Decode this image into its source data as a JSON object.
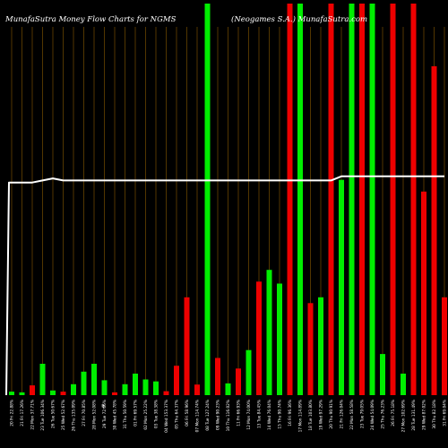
{
  "chart_data": {
    "type": "bar",
    "title_left": "MunafaSutra  Money Flow  Charts for NGMS",
    "title_right": "(Neogames S.A.) MunafaSutra.com",
    "currency_mark": "₹",
    "ylim": [
      0,
      100
    ],
    "grid": "vertical",
    "colors": {
      "up": "#00ee00",
      "down": "#ee0000",
      "line": "#ffffff",
      "grid": "#8a5a00",
      "background": "#000000"
    },
    "categories": [
      "20 Fri 22.88%",
      "21 Fri 17.26%",
      "22 Mon 37.71%",
      "23 Tue 106.34%",
      "26 Tue 50.67%",
      "25 Wed 52.67%",
      "26 Thu 135.09%",
      "27 Fri 70.85%",
      "28 Mon 52.08%",
      "29 Tue 72.66%",
      "30 Wed 45.78%",
      "31 Thu 50.59%",
      "01 Fri 69.57%",
      "02 Mon 25.22%",
      "03 Tue 38.38%",
      "04 Wed 153.37%",
      "05 Thu 64.37%",
      "06 Fri 58.96%",
      "07 Mon 114.74%",
      "08 Tue 127.24%",
      "09 Wed 90.23%",
      "10 Thu 116.02%",
      "11 Fri 66.93%",
      "12 Mon 74.00%",
      "13 Tue 84.45%",
      "14 Wed 76.04%",
      "15 Thu 90.74%",
      "16 Fri 96.36%",
      "17 Mon 114.89%",
      "18 Tue 103.80%",
      "19 Wed 97.29%",
      "20 Thu 90.91%",
      "21 Fri 126.04%",
      "22 Mon 58.58%",
      "23 Tue 79.05%",
      "24 Wed 54.09%",
      "25 Thu 76.23%",
      "26 Fri 75.18%",
      "27 Mon 102.69%",
      "28 Tue 131.49%",
      "29 Wed 87.02%",
      "30 Thu 82.18%",
      "31 Fri 69.04%"
    ],
    "values": [
      0.9,
      0.7,
      2.5,
      8,
      1.2,
      0.9,
      2.8,
      6,
      8,
      3.8,
      0.7,
      2.8,
      5.5,
      4,
      3.5,
      1,
      7.5,
      25,
      2.7,
      100,
      9.5,
      3,
      6.8,
      11.5,
      29,
      32,
      28.5,
      100,
      100,
      23.5,
      25,
      100,
      55,
      100,
      100,
      100,
      10.5,
      100,
      5.5,
      100,
      52,
      84,
      25
    ],
    "directions": [
      "up",
      "up",
      "down",
      "up",
      "up",
      "down",
      "up",
      "up",
      "up",
      "up",
      "down",
      "up",
      "up",
      "up",
      "up",
      "down",
      "down",
      "down",
      "down",
      "up",
      "down",
      "up",
      "down",
      "up",
      "down",
      "up",
      "up",
      "down",
      "up",
      "down",
      "up",
      "down",
      "up",
      "up",
      "down",
      "up",
      "up",
      "down",
      "up",
      "down",
      "down",
      "down",
      "down"
    ],
    "line": [
      52,
      52,
      52,
      52.5,
      53,
      52.5,
      52.5,
      52.5,
      52.5,
      52.5,
      52.5,
      52.5,
      52.5,
      52.5,
      52.5,
      52.5,
      52.5,
      52.5,
      52.5,
      52.5,
      52.5,
      52.5,
      52.5,
      52.5,
      52.5,
      52.5,
      52.5,
      52.5,
      52.5,
      52.5,
      52.5,
      52.5,
      53.5,
      53.5,
      53.5,
      53.5,
      53.5,
      53.5,
      53.5,
      53.5,
      53.5,
      53.5,
      53.5
    ],
    "line_start": 0
  }
}
